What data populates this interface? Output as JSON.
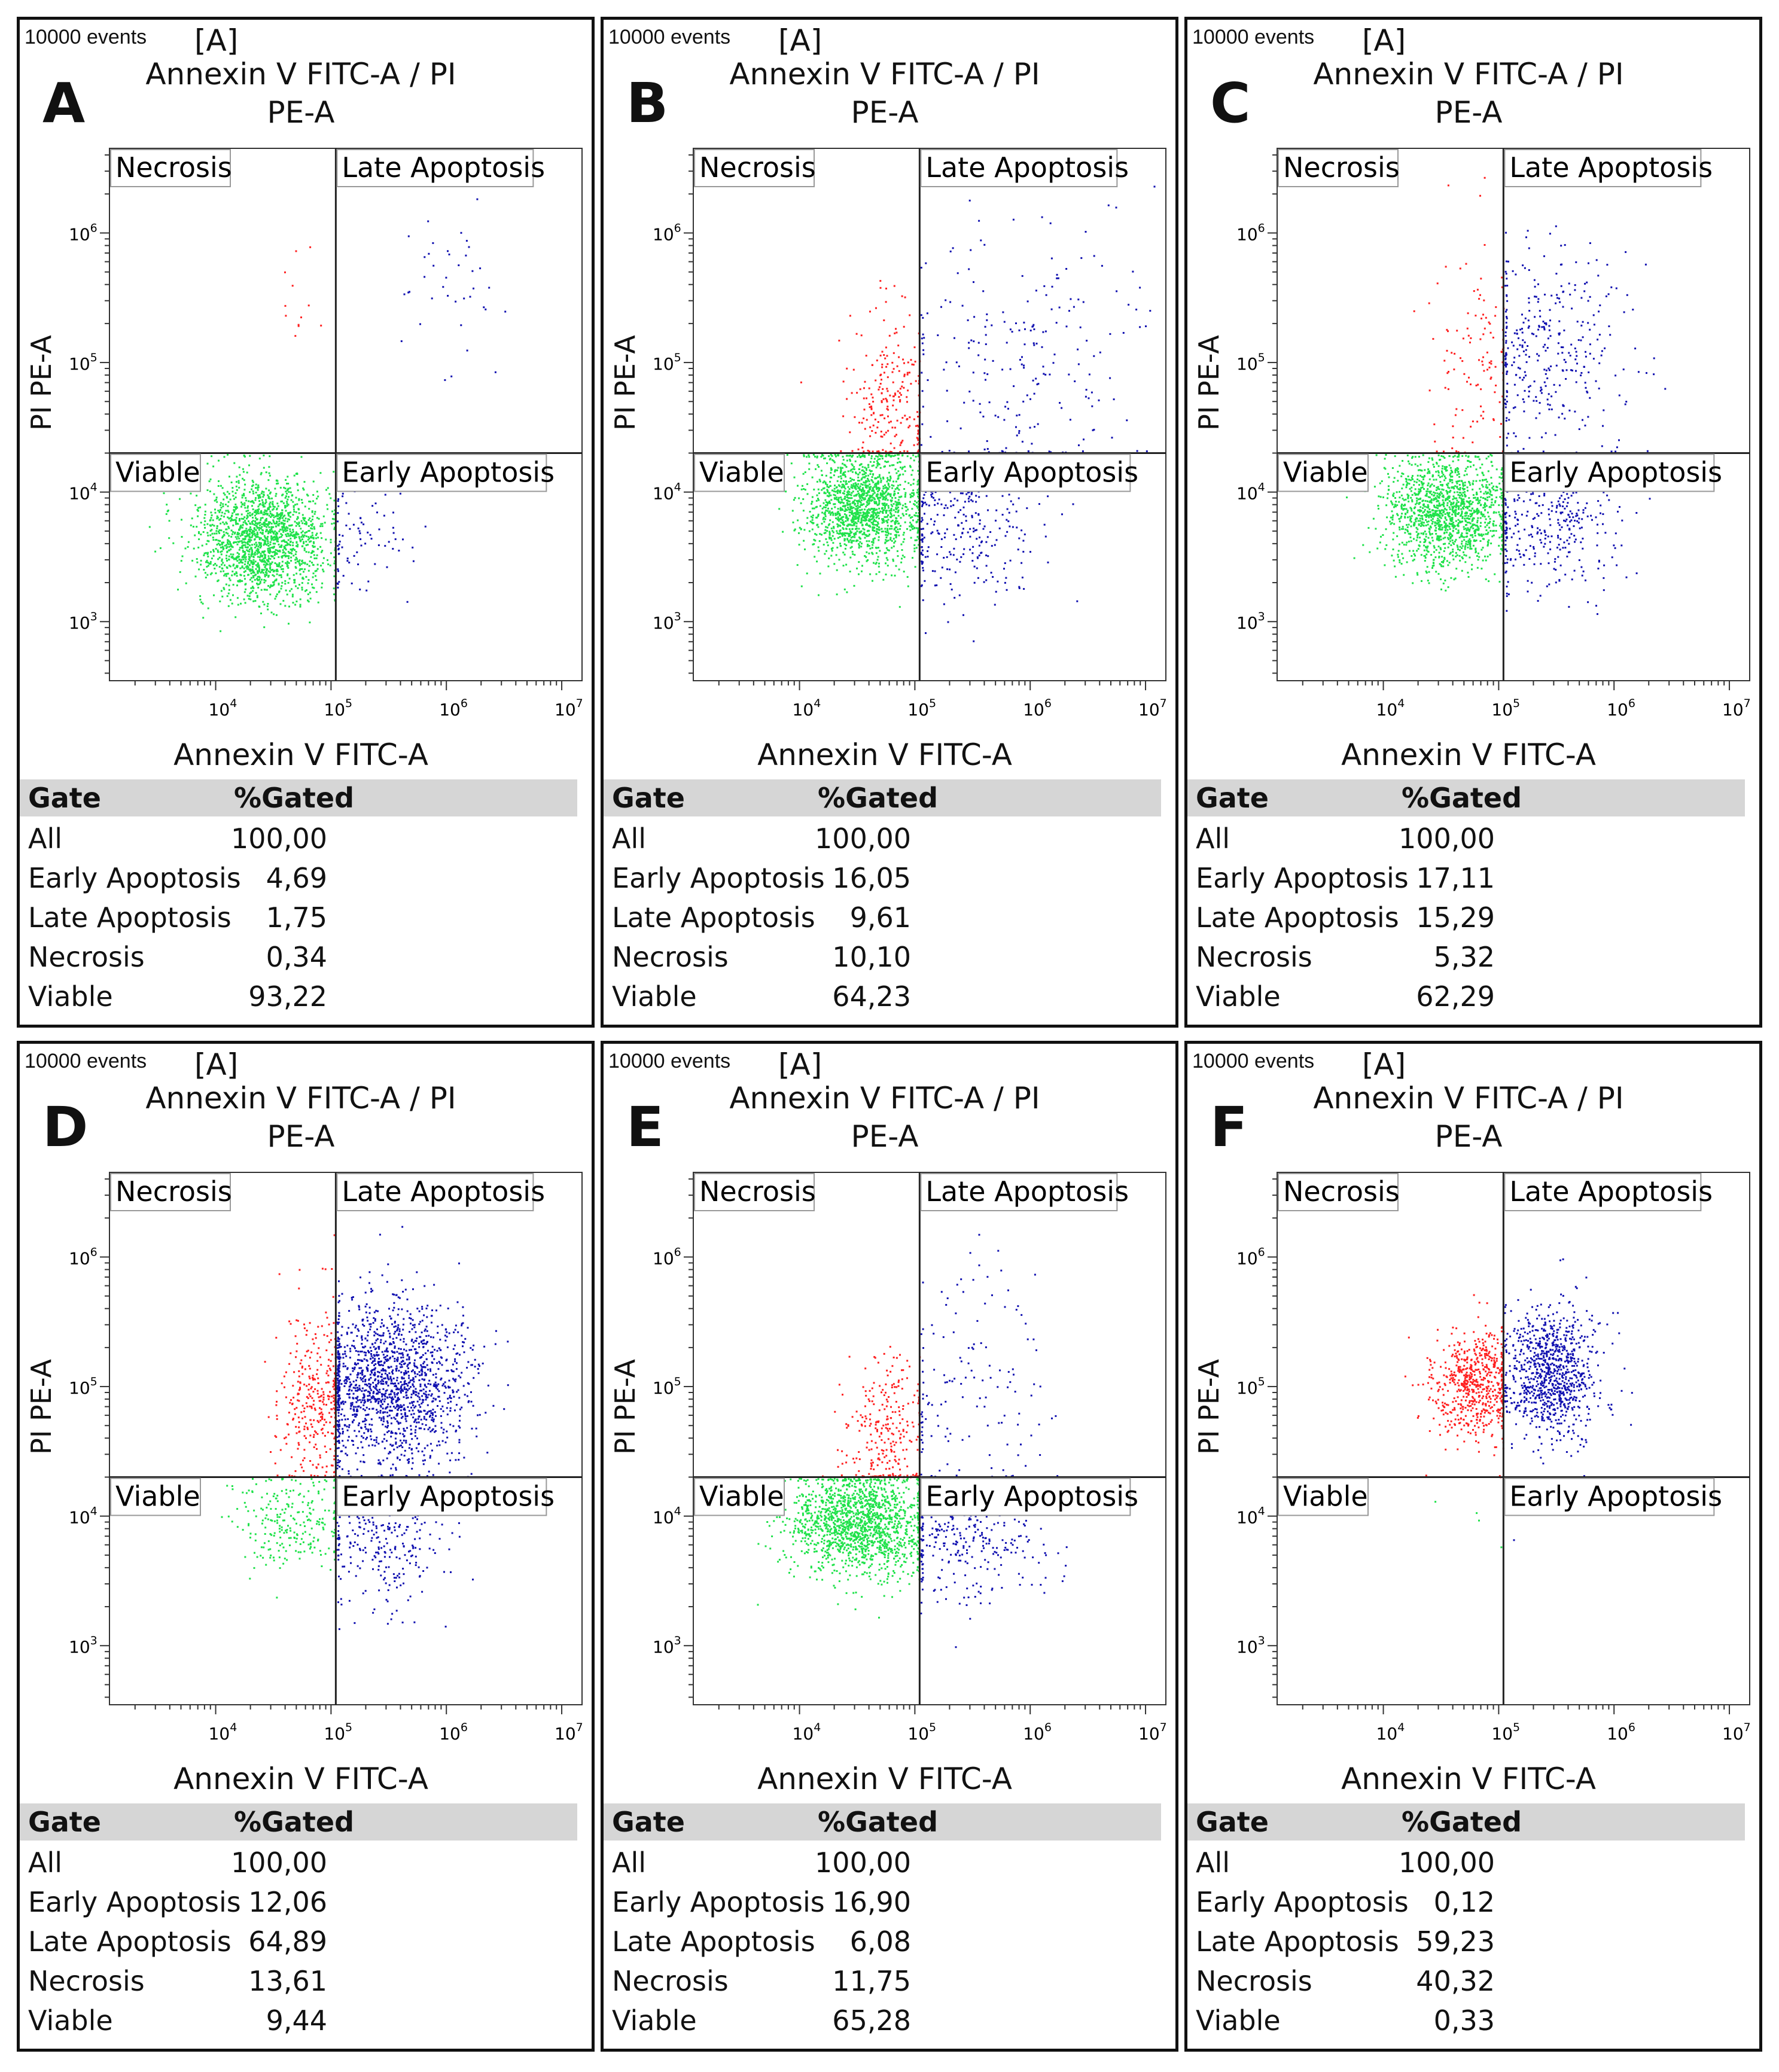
{
  "header": {
    "events": "10000 events",
    "gate_tag": "[A]",
    "title_line1": "Annexin V FITC-A / PI",
    "title_line2": "PE-A",
    "xlabel": "Annexin V FITC-A",
    "ylabel": "PI PE-A"
  },
  "quadrant_labels": {
    "necrosis": "Necrosis",
    "late": "Late Apoptosis",
    "viable": "Viable",
    "early": "Early Apoptosis"
  },
  "table_headers": {
    "gate": "Gate",
    "gated": "%Gated"
  },
  "colors": {
    "viable": "#1fe24a",
    "necrosis": "#ff2020",
    "apoptosis": "#1010b0",
    "header_bg": "#d6d6d6"
  },
  "chart_data": [
    {
      "panel": "A",
      "type": "scatter",
      "title": "Annexin V FITC-A / PI PE-A",
      "xlabel": "Annexin V FITC-A",
      "ylabel": "PI PE-A",
      "x_scale": "log",
      "y_scale": "log",
      "xlim": [
        1200,
        15000000
      ],
      "ylim": [
        350,
        4500000
      ],
      "x_ticks": [
        "10^4",
        "10^5",
        "10^6",
        "10^7"
      ],
      "y_ticks": [
        "10^3",
        "10^4",
        "10^5",
        "10^6"
      ],
      "gate_x": 110000,
      "gate_y": 20000,
      "events": 10000,
      "table": [
        {
          "gate": "All",
          "value": "100,00"
        },
        {
          "gate": "Early Apoptosis",
          "value": "4,69"
        },
        {
          "gate": "Late Apoptosis",
          "value": "1,75"
        },
        {
          "gate": "Necrosis",
          "value": "0,34"
        },
        {
          "gate": "Viable",
          "value": "93,22"
        }
      ],
      "clusters": [
        {
          "quadrant": "viable",
          "cx": 4.4,
          "cy": 3.65,
          "sx": 0.28,
          "sy": 0.24,
          "n": 1700
        },
        {
          "quadrant": "early",
          "cx": 5.2,
          "cy": 3.7,
          "sx": 0.25,
          "sy": 0.25,
          "n": 90
        },
        {
          "quadrant": "late",
          "cx": 6.0,
          "cy": 5.6,
          "sx": 0.25,
          "sy": 0.3,
          "n": 40
        },
        {
          "quadrant": "necrosis",
          "cx": 4.7,
          "cy": 5.5,
          "sx": 0.2,
          "sy": 0.5,
          "n": 12
        }
      ]
    },
    {
      "panel": "B",
      "type": "scatter",
      "title": "Annexin V FITC-A / PI PE-A",
      "xlabel": "Annexin V FITC-A",
      "ylabel": "PI PE-A",
      "x_scale": "log",
      "y_scale": "log",
      "xlim": [
        1200,
        15000000
      ],
      "ylim": [
        350,
        4500000
      ],
      "x_ticks": [
        "10^4",
        "10^5",
        "10^6",
        "10^7"
      ],
      "y_ticks": [
        "10^3",
        "10^4",
        "10^5",
        "10^6"
      ],
      "gate_x": 110000,
      "gate_y": 20000,
      "events": 10000,
      "table": [
        {
          "gate": "All",
          "value": "100,00"
        },
        {
          "gate": "Early Apoptosis",
          "value": "16,05"
        },
        {
          "gate": "Late Apoptosis",
          "value": "9,61"
        },
        {
          "gate": "Necrosis",
          "value": "10,10"
        },
        {
          "gate": "Viable",
          "value": "64,23"
        }
      ],
      "clusters": [
        {
          "quadrant": "viable",
          "cx": 4.55,
          "cy": 3.9,
          "sx": 0.25,
          "sy": 0.22,
          "n": 1500
        },
        {
          "quadrant": "early",
          "cx": 5.4,
          "cy": 3.8,
          "sx": 0.35,
          "sy": 0.3,
          "n": 320
        },
        {
          "quadrant": "late",
          "cx": 5.9,
          "cy": 5.0,
          "sx": 0.5,
          "sy": 0.5,
          "n": 220
        },
        {
          "quadrant": "necrosis",
          "cx": 4.8,
          "cy": 4.7,
          "sx": 0.2,
          "sy": 0.35,
          "n": 240
        }
      ]
    },
    {
      "panel": "C",
      "type": "scatter",
      "title": "Annexin V FITC-A / PI PE-A",
      "xlabel": "Annexin V FITC-A",
      "ylabel": "PI PE-A",
      "x_scale": "log",
      "y_scale": "log",
      "xlim": [
        1200,
        15000000
      ],
      "ylim": [
        350,
        4500000
      ],
      "x_ticks": [
        "10^4",
        "10^5",
        "10^6",
        "10^7"
      ],
      "y_ticks": [
        "10^3",
        "10^4",
        "10^5",
        "10^6"
      ],
      "gate_x": 110000,
      "gate_y": 20000,
      "events": 10000,
      "table": [
        {
          "gate": "All",
          "value": "100,00"
        },
        {
          "gate": "Early Apoptosis",
          "value": "17,11"
        },
        {
          "gate": "Late Apoptosis",
          "value": "15,29"
        },
        {
          "gate": "Necrosis",
          "value": "5,32"
        },
        {
          "gate": "Viable",
          "value": "62,29"
        }
      ],
      "clusters": [
        {
          "quadrant": "viable",
          "cx": 4.55,
          "cy": 3.85,
          "sx": 0.28,
          "sy": 0.22,
          "n": 1400
        },
        {
          "quadrant": "early",
          "cx": 5.4,
          "cy": 3.8,
          "sx": 0.35,
          "sy": 0.3,
          "n": 380
        },
        {
          "quadrant": "late",
          "cx": 5.4,
          "cy": 5.1,
          "sx": 0.35,
          "sy": 0.4,
          "n": 340
        },
        {
          "quadrant": "necrosis",
          "cx": 4.8,
          "cy": 5.0,
          "sx": 0.2,
          "sy": 0.45,
          "n": 120
        }
      ]
    },
    {
      "panel": "D",
      "type": "scatter",
      "title": "Annexin V FITC-A / PI PE-A",
      "xlabel": "Annexin V FITC-A",
      "ylabel": "PI PE-A",
      "x_scale": "log",
      "y_scale": "log",
      "xlim": [
        1200,
        15000000
      ],
      "ylim": [
        350,
        4500000
      ],
      "x_ticks": [
        "10^4",
        "10^5",
        "10^6",
        "10^7"
      ],
      "y_ticks": [
        "10^3",
        "10^4",
        "10^5",
        "10^6"
      ],
      "gate_x": 110000,
      "gate_y": 20000,
      "events": 10000,
      "table": [
        {
          "gate": "All",
          "value": "100,00"
        },
        {
          "gate": "Early Apoptosis",
          "value": "12,06"
        },
        {
          "gate": "Late Apoptosis",
          "value": "64,89"
        },
        {
          "gate": "Necrosis",
          "value": "13,61"
        },
        {
          "gate": "Viable",
          "value": "9,44"
        }
      ],
      "clusters": [
        {
          "quadrant": "viable",
          "cx": 4.65,
          "cy": 3.95,
          "sx": 0.25,
          "sy": 0.2,
          "n": 240
        },
        {
          "quadrant": "early",
          "cx": 5.45,
          "cy": 3.85,
          "sx": 0.3,
          "sy": 0.3,
          "n": 300
        },
        {
          "quadrant": "late",
          "cx": 5.5,
          "cy": 5.0,
          "sx": 0.35,
          "sy": 0.32,
          "n": 1550
        },
        {
          "quadrant": "necrosis",
          "cx": 4.85,
          "cy": 4.9,
          "sx": 0.17,
          "sy": 0.35,
          "n": 330
        }
      ]
    },
    {
      "panel": "E",
      "type": "scatter",
      "title": "Annexin V FITC-A / PI PE-A",
      "xlabel": "Annexin V FITC-A",
      "ylabel": "PI PE-A",
      "x_scale": "log",
      "y_scale": "log",
      "xlim": [
        1200,
        15000000
      ],
      "ylim": [
        350,
        4500000
      ],
      "x_ticks": [
        "10^4",
        "10^5",
        "10^6",
        "10^7"
      ],
      "y_ticks": [
        "10^3",
        "10^4",
        "10^5",
        "10^6"
      ],
      "gate_x": 110000,
      "gate_y": 20000,
      "events": 10000,
      "table": [
        {
          "gate": "All",
          "value": "100,00"
        },
        {
          "gate": "Early Apoptosis",
          "value": "16,90"
        },
        {
          "gate": "Late Apoptosis",
          "value": "6,08"
        },
        {
          "gate": "Necrosis",
          "value": "11,75"
        },
        {
          "gate": "Viable",
          "value": "65,28"
        }
      ],
      "clusters": [
        {
          "quadrant": "viable",
          "cx": 4.5,
          "cy": 3.95,
          "sx": 0.3,
          "sy": 0.2,
          "n": 1500
        },
        {
          "quadrant": "early",
          "cx": 5.4,
          "cy": 3.9,
          "sx": 0.35,
          "sy": 0.28,
          "n": 390
        },
        {
          "quadrant": "late",
          "cx": 5.5,
          "cy": 5.0,
          "sx": 0.35,
          "sy": 0.5,
          "n": 140
        },
        {
          "quadrant": "necrosis",
          "cx": 4.75,
          "cy": 4.6,
          "sx": 0.2,
          "sy": 0.35,
          "n": 270
        }
      ]
    },
    {
      "panel": "F",
      "type": "scatter",
      "title": "Annexin V FITC-A / PI PE-A",
      "xlabel": "Annexin V FITC-A",
      "ylabel": "PI PE-A",
      "x_scale": "log",
      "y_scale": "log",
      "xlim": [
        1200,
        15000000
      ],
      "ylim": [
        350,
        4500000
      ],
      "x_ticks": [
        "10^4",
        "10^5",
        "10^6",
        "10^7"
      ],
      "y_ticks": [
        "10^3",
        "10^4",
        "10^5",
        "10^6"
      ],
      "gate_x": 110000,
      "gate_y": 20000,
      "events": 10000,
      "table": [
        {
          "gate": "All",
          "value": "100,00"
        },
        {
          "gate": "Early Apoptosis",
          "value": "0,12"
        },
        {
          "gate": "Late Apoptosis",
          "value": "59,23"
        },
        {
          "gate": "Necrosis",
          "value": "40,32"
        },
        {
          "gate": "Viable",
          "value": "0,33"
        }
      ],
      "clusters": [
        {
          "quadrant": "viable",
          "cx": 4.8,
          "cy": 4.0,
          "sx": 0.15,
          "sy": 0.15,
          "n": 4
        },
        {
          "quadrant": "early",
          "cx": 5.2,
          "cy": 4.1,
          "sx": 0.1,
          "sy": 0.1,
          "n": 3
        },
        {
          "quadrant": "late",
          "cx": 5.45,
          "cy": 5.1,
          "sx": 0.22,
          "sy": 0.25,
          "n": 900
        },
        {
          "quadrant": "necrosis",
          "cx": 4.8,
          "cy": 5.0,
          "sx": 0.2,
          "sy": 0.22,
          "n": 620
        }
      ]
    }
  ]
}
